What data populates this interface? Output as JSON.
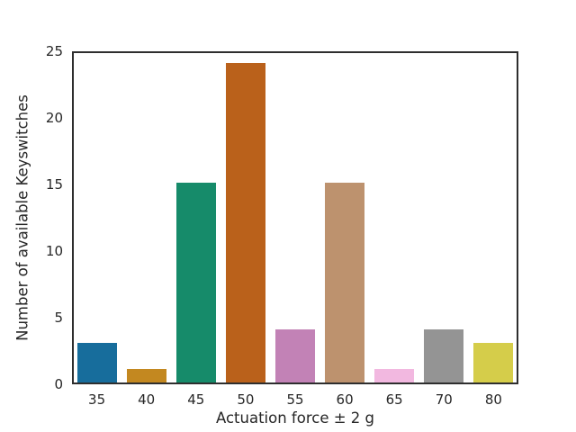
{
  "figure": {
    "background_color": "#ffffff",
    "text_color": "#262626",
    "spine_color": "#2e2e2e"
  },
  "chart_data": {
    "type": "bar",
    "xlabel": "Actuation force ± 2 g",
    "ylabel": "Number of available Keyswitches",
    "categories": [
      "35",
      "40",
      "45",
      "50",
      "55",
      "60",
      "65",
      "70",
      "80"
    ],
    "values": [
      3,
      1,
      15,
      24,
      4,
      15,
      1,
      4,
      3
    ],
    "bar_colors": [
      "#176d9c",
      "#c38820",
      "#168b6a",
      "#ba611b",
      "#c282b6",
      "#bd926e",
      "#f2b8e0",
      "#949494",
      "#d5cd4a"
    ],
    "ylim": [
      0,
      25
    ],
    "yticks": [
      0,
      5,
      10,
      15,
      20,
      25
    ],
    "grid": false,
    "tick_marks": false,
    "legend": "none"
  }
}
